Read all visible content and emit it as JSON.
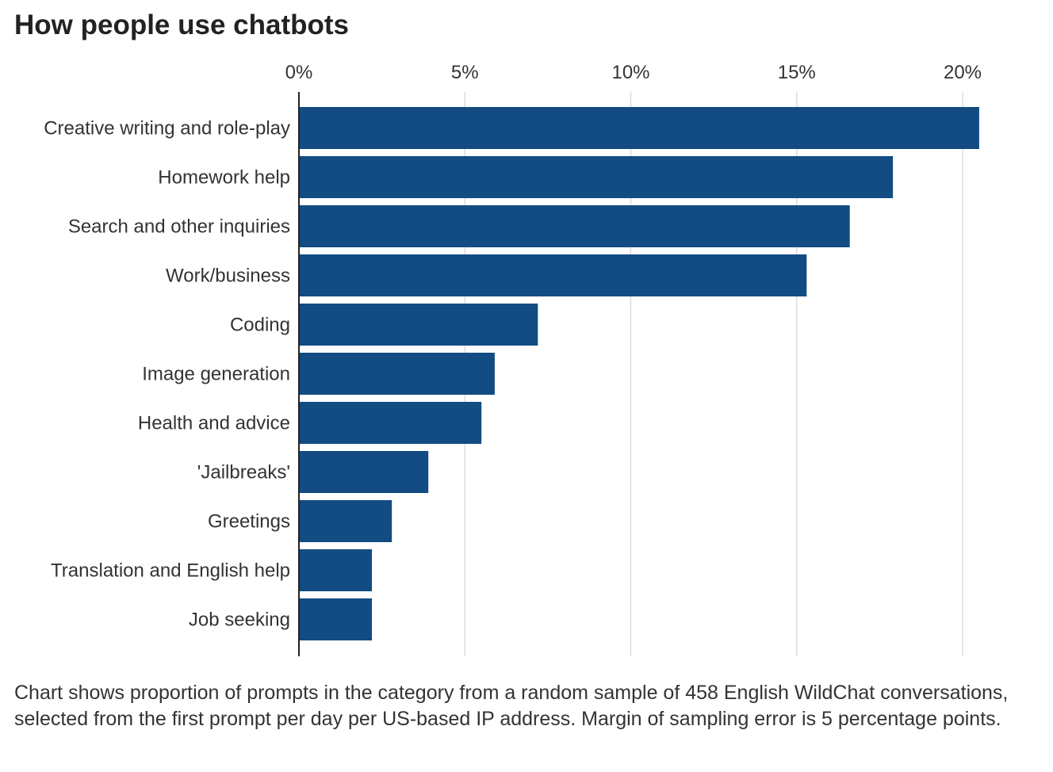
{
  "title": "How people use chatbots",
  "note": "Chart shows proportion of prompts in the category from a random sample of 458 English WildChat conversations, selected from the first prompt per day per US-based IP address. Margin of sampling error is 5 percentage points.",
  "colors": {
    "bar": "#124c82",
    "grid": "#dddddd",
    "axis": "#222222",
    "text": "#333333"
  },
  "chart_data": {
    "type": "bar",
    "orientation": "horizontal",
    "title": "How people use chatbots",
    "xlabel": "",
    "ylabel": "",
    "xlim": [
      0,
      20
    ],
    "ticks": [
      0,
      5,
      10,
      15,
      20
    ],
    "tick_labels": [
      "0%",
      "5%",
      "10%",
      "15%",
      "20%"
    ],
    "grid": true,
    "axis_position": "top",
    "categories": [
      "Creative writing and role-play",
      "Homework help",
      "Search and other inquiries",
      "Work/business",
      "Coding",
      "Image generation",
      "Health and advice",
      "'Jailbreaks'",
      "Greetings",
      "Translation and English help",
      "Job seeking"
    ],
    "values": [
      20.5,
      17.9,
      16.6,
      15.3,
      7.2,
      5.9,
      5.5,
      3.9,
      2.8,
      2.2,
      2.2
    ],
    "unit": "%"
  }
}
